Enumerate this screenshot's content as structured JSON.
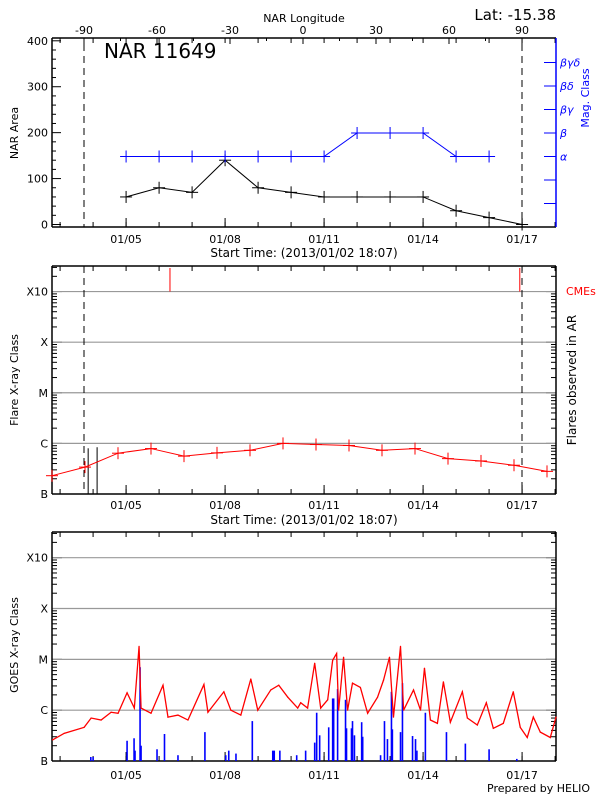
{
  "colors": {
    "area": "#000000",
    "mag_class": "#0000ff",
    "flare": "#ff0000",
    "cme": "#ff0000",
    "goes": "#ff0000",
    "goes_events": "#0000ff",
    "grid": "#999999"
  },
  "footer": "Prepared by HELIO",
  "chart_data": [
    {
      "type": "line",
      "title": "NAR 11649",
      "annotation": "Lat: -15.38",
      "xlabel": "Start Time: (2013/01/02 18:07)",
      "xlim": [
        "2013-01-02T18:07",
        "2013-01-18T00:40"
      ],
      "x_tick_labels": [
        "01/05",
        "01/08",
        "01/11",
        "01/14",
        "01/17"
      ],
      "x_tick_dates": [
        "2013-01-05T00:00",
        "2013-01-08T00:00",
        "2013-01-11T00:00",
        "2013-01-14T00:00",
        "2013-01-17T00:00"
      ],
      "x_top_label": "NAR Longitude",
      "x_top_ticks": [
        "-90",
        "-60",
        "-30",
        "0",
        "30",
        "60",
        "90"
      ],
      "limb_longitudes": [
        -90,
        90
      ],
      "ylabel": "NAR Area",
      "ylim": [
        0,
        400
      ],
      "y_ticks": [
        "0",
        "100",
        "200",
        "300",
        "400"
      ],
      "y2label": "Mag. Class",
      "y2_ticks": [
        "",
        "",
        "α",
        "β",
        "βγ",
        "βδ",
        "βγδ"
      ],
      "series": [
        {
          "key": "area",
          "color": "#000000",
          "points": [
            [
              "2013-01-05T00:00",
              60
            ],
            [
              "2013-01-06T00:00",
              80
            ],
            [
              "2013-01-07T00:00",
              70
            ],
            [
              "2013-01-08T00:00",
              140
            ],
            [
              "2013-01-09T00:00",
              80
            ],
            [
              "2013-01-10T00:00",
              70
            ],
            [
              "2013-01-11T00:00",
              60
            ],
            [
              "2013-01-12T00:00",
              60
            ],
            [
              "2013-01-13T00:00",
              60
            ],
            [
              "2013-01-14T00:00",
              60
            ],
            [
              "2013-01-15T00:00",
              30
            ],
            [
              "2013-01-16T00:00",
              15
            ],
            [
              "2013-01-17T00:00",
              0
            ]
          ]
        },
        {
          "key": "mag_class",
          "color": "#0000ff",
          "axis": "right",
          "points": [
            [
              "2013-01-05T00:00",
              "α"
            ],
            [
              "2013-01-06T00:00",
              "α"
            ],
            [
              "2013-01-07T00:00",
              "α"
            ],
            [
              "2013-01-08T00:00",
              "α"
            ],
            [
              "2013-01-09T00:00",
              "α"
            ],
            [
              "2013-01-10T00:00",
              "α"
            ],
            [
              "2013-01-11T00:00",
              "α"
            ],
            [
              "2013-01-12T00:00",
              "β"
            ],
            [
              "2013-01-13T00:00",
              "β"
            ],
            [
              "2013-01-14T00:00",
              "β"
            ],
            [
              "2013-01-15T00:00",
              "α"
            ],
            [
              "2013-01-16T00:00",
              "α"
            ]
          ]
        }
      ]
    },
    {
      "type": "line",
      "xlabel": "Start Time: (2013/01/02 18:07)",
      "xlim": [
        "2013-01-02T18:07",
        "2013-01-18T00:40"
      ],
      "x_tick_labels": [
        "01/05",
        "01/08",
        "01/11",
        "01/14",
        "01/17"
      ],
      "ylabel": "Flare X-ray Class",
      "y2label": "Flares observed in AR",
      "y_scale": "log",
      "ylim": [
        1e-07,
        0.0032
      ],
      "y_ticks": [
        {
          "label": "B",
          "value": 1e-07
        },
        {
          "label": "C",
          "value": 1e-06
        },
        {
          "label": "M",
          "value": 1e-05
        },
        {
          "label": "X",
          "value": 0.0001
        },
        {
          "label": "X10",
          "value": 0.001
        }
      ],
      "grid": true,
      "cme_label": "CMEs",
      "cmes": [
        "2013-01-06T07:55",
        "2013-01-16T22:20"
      ],
      "flares": [
        [
          "2013-01-03T20:25",
          8e-07
        ],
        [
          "2013-01-04T02:55",
          8.4e-07
        ]
      ],
      "series": [
        {
          "key": "daily_max_flux",
          "color": "#ff0000",
          "points": [
            [
              "2013-01-02T18:07",
              2.3e-07
            ],
            [
              "2013-01-03T18:07",
              3.4e-07
            ],
            [
              "2013-01-04T18:07",
              6.4e-07
            ],
            [
              "2013-01-05T18:07",
              7.9e-07
            ],
            [
              "2013-01-06T18:07",
              5.6e-07
            ],
            [
              "2013-01-07T18:07",
              6.5e-07
            ],
            [
              "2013-01-08T18:07",
              7.3e-07
            ],
            [
              "2013-01-09T18:07",
              1e-06
            ],
            [
              "2013-01-10T18:07",
              9.5e-07
            ],
            [
              "2013-01-11T18:07",
              9.1e-07
            ],
            [
              "2013-01-12T18:07",
              7.3e-07
            ],
            [
              "2013-01-13T18:07",
              7.9e-07
            ],
            [
              "2013-01-14T18:07",
              5e-07
            ],
            [
              "2013-01-15T18:07",
              4.5e-07
            ],
            [
              "2013-01-16T18:07",
              3.7e-07
            ],
            [
              "2013-01-17T18:07",
              2.8e-07
            ]
          ]
        }
      ]
    },
    {
      "type": "line",
      "xlim": [
        "2013-01-02T18:07",
        "2013-01-18T00:40"
      ],
      "x_tick_labels": [
        "01/05",
        "01/08",
        "01/11",
        "01/14",
        "01/17"
      ],
      "ylabel": "GOES X-ray Class",
      "y_scale": "log",
      "ylim": [
        1e-07,
        0.0032
      ],
      "y_ticks": [
        {
          "label": "B",
          "value": 1e-07
        },
        {
          "label": "C",
          "value": 1e-06
        },
        {
          "label": "M",
          "value": 1e-05
        },
        {
          "label": "X",
          "value": 0.0001
        },
        {
          "label": "X10",
          "value": 0.001
        }
      ],
      "grid": true,
      "series": [
        {
          "key": "goes_flux",
          "color": "#ff0000",
          "points": [
            [
              "2013-01-02T18:30",
              2.6e-07
            ],
            [
              "2013-01-03T03:00",
              3.5e-07
            ],
            [
              "2013-01-03T17:30",
              4.6e-07
            ],
            [
              "2013-01-03T22:36",
              7e-07
            ],
            [
              "2013-01-04T05:50",
              6.4e-07
            ],
            [
              "2013-01-04T13:06",
              9.1e-07
            ],
            [
              "2013-01-04T18:10",
              8.7e-07
            ],
            [
              "2013-01-05T00:43",
              2.2e-06
            ],
            [
              "2013-01-05T06:00",
              1.1e-06
            ],
            [
              "2013-01-05T09:26",
              1.8e-05
            ],
            [
              "2013-01-05T10:53",
              1.1e-06
            ],
            [
              "2013-01-05T18:08",
              8.7e-07
            ],
            [
              "2013-01-06T02:51",
              3.1e-06
            ],
            [
              "2013-01-06T06:28",
              7.3e-07
            ],
            [
              "2013-01-06T13:44",
              8e-07
            ],
            [
              "2013-01-06T21:00",
              6.4e-07
            ],
            [
              "2013-01-07T08:37",
              3.2e-06
            ],
            [
              "2013-01-07T11:31",
              9.1e-07
            ],
            [
              "2013-01-07T23:07",
              2.3e-06
            ],
            [
              "2013-01-08T04:12",
              1e-06
            ],
            [
              "2013-01-08T11:27",
              8e-07
            ],
            [
              "2013-01-08T18:43",
              4.1e-06
            ],
            [
              "2013-01-08T23:46",
              1e-06
            ],
            [
              "2013-01-09T09:14",
              2.5e-06
            ],
            [
              "2013-01-09T15:02",
              3.1e-06
            ],
            [
              "2013-01-09T21:36",
              1.8e-06
            ],
            [
              "2013-01-10T04:48",
              1.1e-06
            ],
            [
              "2013-01-10T07:00",
              1.4e-06
            ],
            [
              "2013-01-10T12:00",
              1.1e-06
            ],
            [
              "2013-01-10T17:10",
              8.4e-06
            ],
            [
              "2013-01-10T21:32",
              1.1e-06
            ],
            [
              "2013-01-11T02:37",
              1.6e-06
            ],
            [
              "2013-01-11T06:14",
              9.6e-06
            ],
            [
              "2013-01-11T09:07",
              1.3e-05
            ],
            [
              "2013-01-11T10:34",
              1e-06
            ],
            [
              "2013-01-11T14:10",
              1.1e-05
            ],
            [
              "2013-01-11T17:05",
              1e-06
            ],
            [
              "2013-01-11T20:40",
              3.4e-06
            ],
            [
              "2013-01-12T02:24",
              2.8e-06
            ],
            [
              "2013-01-12T07:40",
              8.7e-07
            ],
            [
              "2013-01-12T14:53",
              1.8e-06
            ],
            [
              "2013-01-12T19:14",
              3.9e-06
            ],
            [
              "2013-01-12T23:34",
              1.1e-05
            ],
            [
              "2013-01-13T02:28",
              7.3e-07
            ],
            [
              "2013-01-13T07:35",
              1.8e-05
            ],
            [
              "2013-01-13T09:50",
              1e-06
            ],
            [
              "2013-01-13T17:03",
              2.5e-06
            ],
            [
              "2013-01-13T22:08",
              1e-06
            ],
            [
              "2013-01-14T01:00",
              6.7e-06
            ],
            [
              "2013-01-14T05:20",
              6.4e-07
            ],
            [
              "2013-01-14T10:25",
              5.5e-07
            ],
            [
              "2013-01-14T14:46",
              3.6e-06
            ],
            [
              "2013-01-14T19:50",
              5.8e-07
            ],
            [
              "2013-01-15T04:34",
              2.3e-06
            ],
            [
              "2013-01-15T08:12",
              7e-07
            ],
            [
              "2013-01-15T15:26",
              5.1e-07
            ],
            [
              "2013-01-15T22:00",
              1.4e-06
            ],
            [
              "2013-01-16T03:05",
              4.4e-07
            ],
            [
              "2013-01-16T10:20",
              5.5e-07
            ],
            [
              "2013-01-16T17:35",
              2.3e-06
            ],
            [
              "2013-01-16T22:40",
              4.6e-07
            ],
            [
              "2013-01-17T03:45",
              2.9e-07
            ],
            [
              "2013-01-17T08:10",
              7.3e-07
            ],
            [
              "2013-01-17T13:15",
              3.7e-07
            ],
            [
              "2013-01-17T20:30",
              2.9e-07
            ],
            [
              "2013-01-18T00:40",
              7.3e-07
            ]
          ]
        },
        {
          "key": "goes_events",
          "color": "#0000ff",
          "kind": "bars",
          "points": [
            [
              "2013-01-03T22:20",
              1.2e-07
            ],
            [
              "2013-01-04T00:00",
              1.2e-07
            ],
            [
              "2013-01-05T00:43",
              2.5e-07
            ],
            [
              "2013-01-05T05:48",
              2.8e-07
            ],
            [
              "2013-01-05T06:30",
              1.6e-07
            ],
            [
              "2013-01-05T10:10",
              7e-06
            ],
            [
              "2013-01-05T10:53",
              2e-07
            ],
            [
              "2013-01-05T22:30",
              1.7e-07
            ],
            [
              "2013-01-06T03:56",
              3.4e-07
            ],
            [
              "2013-01-06T13:44",
              1.3e-07
            ],
            [
              "2013-01-07T09:20",
              3.7e-07
            ],
            [
              "2013-01-08T00:29",
              1.3e-07
            ],
            [
              "2013-01-08T02:40",
              1.6e-07
            ],
            [
              "2013-01-08T07:55",
              1.4e-07
            ],
            [
              "2013-01-08T19:48",
              6.1e-07
            ],
            [
              "2013-01-09T10:40",
              1.6e-07
            ],
            [
              "2013-01-09T11:45",
              1.6e-07
            ],
            [
              "2013-01-09T15:50",
              1.6e-07
            ],
            [
              "2013-01-10T04:05",
              1.3e-07
            ],
            [
              "2013-01-10T10:35",
              1.6e-07
            ],
            [
              "2013-01-10T17:10",
              2.3e-07
            ],
            [
              "2013-01-10T18:37",
              8.9e-07
            ],
            [
              "2013-01-10T20:47",
              3.2e-07
            ],
            [
              "2013-01-11T03:22",
              4.6e-07
            ],
            [
              "2013-01-11T06:14",
              1.7e-06
            ],
            [
              "2013-01-11T06:58",
              1.7e-06
            ],
            [
              "2013-01-11T09:50",
              2.6e-06
            ],
            [
              "2013-01-11T15:36",
              1.6e-06
            ],
            [
              "2013-01-11T16:19",
              4.4e-07
            ],
            [
              "2013-01-11T19:55",
              4.4e-07
            ],
            [
              "2013-01-11T20:40",
              6.1e-07
            ],
            [
              "2013-01-11T22:05",
              3.2e-07
            ],
            [
              "2013-01-12T03:20",
              5.8e-07
            ],
            [
              "2013-01-12T04:05",
              3e-07
            ],
            [
              "2013-01-12T17:05",
              1.3e-07
            ],
            [
              "2013-01-12T19:55",
              6.1e-07
            ],
            [
              "2013-01-12T22:05",
              2.7e-07
            ],
            [
              "2013-01-13T01:00",
              2.3e-06
            ],
            [
              "2013-01-13T01:40",
              4.2e-07
            ],
            [
              "2013-01-13T07:35",
              3.7e-07
            ],
            [
              "2013-01-13T09:00",
              3.4e-06
            ],
            [
              "2013-01-13T16:20",
              3.1e-07
            ],
            [
              "2013-01-13T18:30",
              2.7e-07
            ],
            [
              "2013-01-13T19:30",
              1.6e-07
            ],
            [
              "2013-01-14T01:40",
              8.9e-07
            ],
            [
              "2013-01-14T17:00",
              3.7e-07
            ],
            [
              "2013-01-15T06:45",
              2.2e-07
            ],
            [
              "2013-01-16T00:00",
              1.7e-07
            ],
            [
              "2013-01-16T20:10",
              1.1e-07
            ]
          ]
        }
      ]
    }
  ]
}
